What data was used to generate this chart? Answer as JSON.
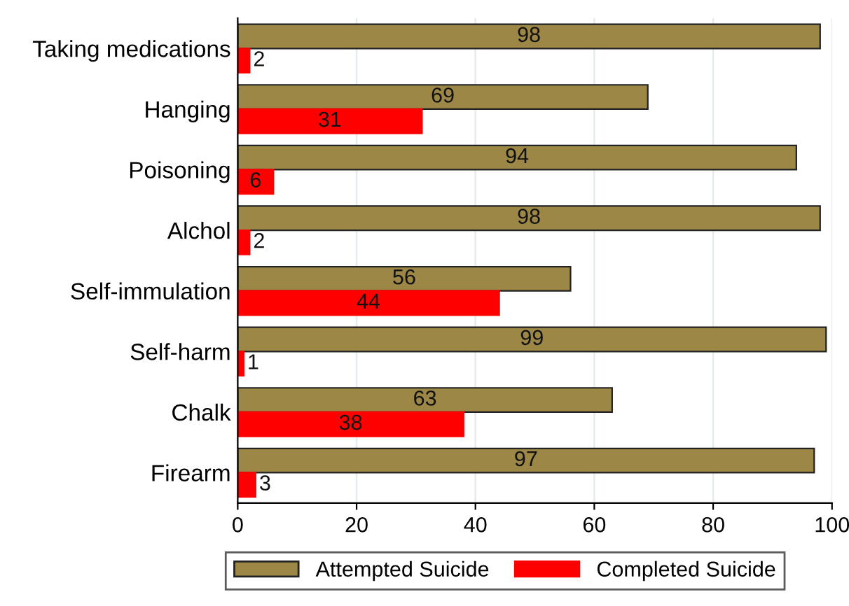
{
  "chart_data": {
    "type": "bar",
    "orientation": "horizontal",
    "categories": [
      "Taking medications",
      "Hanging",
      "Poisoning",
      "Alchol",
      "Self-immulation",
      "Self-harm",
      "Chalk",
      "Firearm"
    ],
    "series": [
      {
        "name": "Attempted Suicide",
        "color": "#9c8747",
        "values": [
          98,
          69,
          94,
          98,
          56,
          99,
          63,
          97
        ]
      },
      {
        "name": "Completed Suicide",
        "color": "#ff0000",
        "values": [
          2,
          31,
          6,
          2,
          44,
          1,
          38,
          3
        ]
      }
    ],
    "xlim": [
      0,
      100
    ],
    "xticks": [
      0,
      20,
      40,
      60,
      80,
      100
    ],
    "grid": "x",
    "legend": "bottom",
    "data_labels": true
  }
}
